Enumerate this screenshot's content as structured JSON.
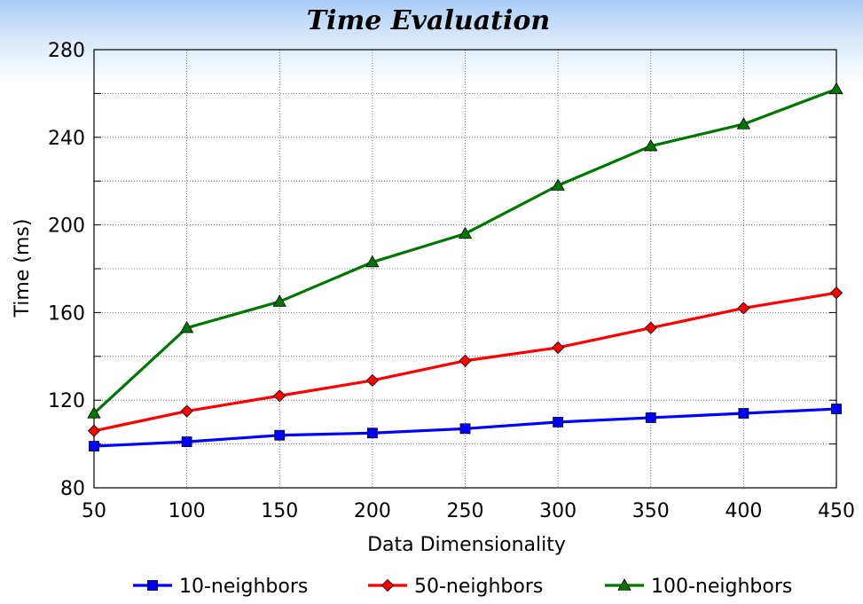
{
  "chart_data": {
    "type": "line",
    "title": "Time Evaluation",
    "xlabel": "Data Dimensionality",
    "ylabel": "Time (ms)",
    "x": [
      50,
      100,
      150,
      200,
      250,
      300,
      350,
      400,
      450
    ],
    "xlim": [
      50,
      450
    ],
    "ylim": [
      80,
      280
    ],
    "xticks": [
      50,
      100,
      150,
      200,
      250,
      300,
      350,
      400,
      450
    ],
    "yticks": [
      80,
      120,
      160,
      200,
      240,
      280
    ],
    "grid": true,
    "legend_position": "bottom",
    "series": [
      {
        "name": "10-neighbors",
        "color": "#0000ff",
        "marker": "square",
        "values": [
          99,
          101,
          104,
          105,
          107,
          110,
          112,
          114,
          116
        ]
      },
      {
        "name": "50-neighbors",
        "color": "#ff0000",
        "marker": "diamond",
        "values": [
          106,
          115,
          122,
          129,
          138,
          144,
          153,
          162,
          169
        ]
      },
      {
        "name": "100-neighbors",
        "color": "#007700",
        "marker": "triangle",
        "values": [
          114,
          153,
          165,
          183,
          196,
          218,
          236,
          246,
          262
        ]
      }
    ]
  }
}
